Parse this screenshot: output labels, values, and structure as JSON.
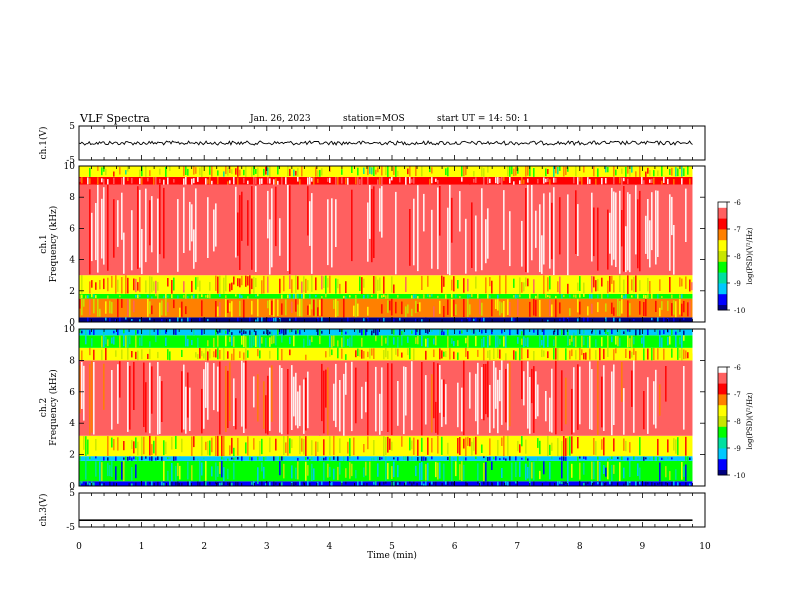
{
  "header": {
    "title": "VLF Spectra",
    "date": "Jan. 26, 2023",
    "station": "station=MOS",
    "start": "start UT =  14: 50: 1"
  },
  "colors": {
    "colormap": [
      "#000080",
      "#0000ff",
      "#00c8ff",
      "#00e0a0",
      "#00ff00",
      "#c8e600",
      "#ffff00",
      "#ff8000",
      "#ff0000",
      "#ff6060",
      "#ffffff"
    ]
  },
  "chart_data": [
    {
      "type": "line",
      "panel": "ch1-waveform",
      "ylabel": "ch.1(V)",
      "ylim": [
        -5,
        5
      ],
      "yticks": [
        "5",
        "-5"
      ],
      "series": [
        {
          "x": [
            0,
            9.8
          ],
          "y": [
            0,
            0
          ]
        }
      ],
      "xlim": [
        0,
        10
      ]
    },
    {
      "type": "heatmap",
      "panel": "ch1-spectrogram",
      "ylabel": "ch.1\nFrequency (kHz)",
      "ylim": [
        0,
        10
      ],
      "yticks": [
        "0",
        "2",
        "4",
        "6",
        "8",
        "10"
      ],
      "xlim": [
        0,
        10
      ],
      "data_xmax": 9.8,
      "colorbar": {
        "label": "log(PSD)(V²/Hz)",
        "range": [
          -10,
          -6
        ],
        "ticks": [
          "-6",
          "-7",
          "-8",
          "-9",
          "-10"
        ]
      },
      "bands": [
        {
          "fmin": 0.0,
          "fmax": 0.3,
          "level": -10
        },
        {
          "fmin": 0.3,
          "fmax": 1.5,
          "level": -7.3
        },
        {
          "fmin": 1.5,
          "fmax": 1.8,
          "level": -8.4
        },
        {
          "fmin": 1.8,
          "fmax": 3.0,
          "level": -7.4
        },
        {
          "fmin": 3.0,
          "fmax": 8.8,
          "level": -6.4
        },
        {
          "fmin": 8.8,
          "fmax": 9.3,
          "level": -6.8
        },
        {
          "fmin": 9.3,
          "fmax": 10.0,
          "level": -7.8
        }
      ]
    },
    {
      "type": "heatmap",
      "panel": "ch2-spectrogram",
      "ylabel": "ch.2\nFrequency (kHz)",
      "ylim": [
        0,
        10
      ],
      "yticks": [
        "0",
        "2",
        "4",
        "6",
        "8",
        "10"
      ],
      "xlim": [
        0,
        10
      ],
      "data_xmax": 9.8,
      "colorbar": {
        "label": "log(PSD)(V²/Hz)",
        "range": [
          -10,
          -6
        ],
        "ticks": [
          "-6",
          "-7",
          "-8",
          "-9",
          "-10"
        ]
      },
      "bands": [
        {
          "fmin": 0.0,
          "fmax": 0.3,
          "level": -9.6
        },
        {
          "fmin": 0.3,
          "fmax": 1.6,
          "level": -8.6
        },
        {
          "fmin": 1.6,
          "fmax": 1.9,
          "level": -9.2
        },
        {
          "fmin": 1.9,
          "fmax": 3.2,
          "level": -7.6
        },
        {
          "fmin": 3.2,
          "fmax": 8.0,
          "level": -6.6
        },
        {
          "fmin": 8.0,
          "fmax": 8.8,
          "level": -7.6
        },
        {
          "fmin": 8.8,
          "fmax": 9.6,
          "level": -8.5
        },
        {
          "fmin": 9.6,
          "fmax": 10.0,
          "level": -9.3
        }
      ]
    },
    {
      "type": "line",
      "panel": "ch3-waveform",
      "ylabel": "ch.3(V)",
      "ylim": [
        -5,
        5
      ],
      "yticks": [
        "5",
        "-5"
      ],
      "series": [
        {
          "x": [
            0,
            9.8
          ],
          "y": [
            -3,
            -3
          ]
        }
      ],
      "xlim": [
        0,
        10
      ],
      "xlabel": "Time (min)",
      "xticks": [
        "0",
        "1",
        "2",
        "3",
        "4",
        "5",
        "6",
        "7",
        "8",
        "9",
        "10"
      ]
    }
  ]
}
